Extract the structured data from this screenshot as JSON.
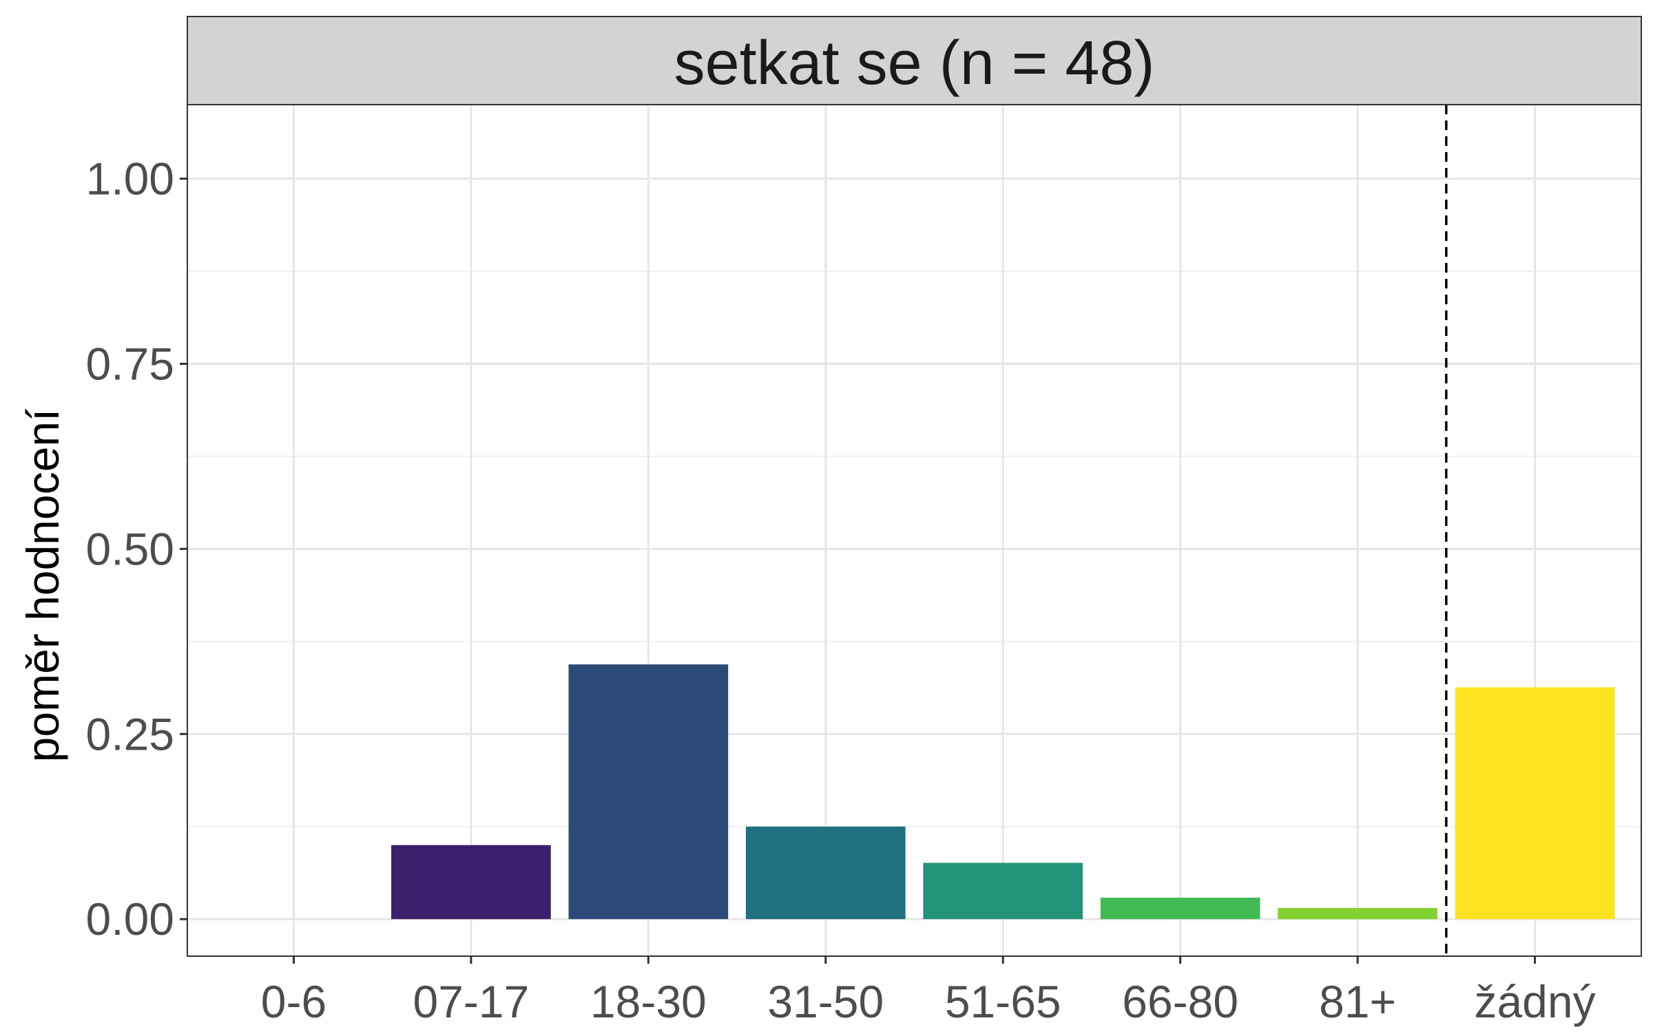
{
  "chart_data": {
    "type": "bar",
    "facet_title": "setkat se (n = 48)",
    "ylabel": "poměr hodnocení",
    "xlabel": "",
    "categories": [
      "0-6",
      "07-17",
      "18-30",
      "31-50",
      "51-65",
      "66-80",
      "81+",
      "žádný"
    ],
    "values": [
      0.0,
      0.1,
      0.344,
      0.125,
      0.076,
      0.029,
      0.015,
      0.313
    ],
    "colors": [
      "#440154",
      "#3B1F6B",
      "#2C4A78",
      "#217080",
      "#229377",
      "#42BA54",
      "#82D22F",
      "#FDE31F"
    ],
    "ylim": [
      -0.05,
      1.1
    ],
    "yticks": [
      0.0,
      0.25,
      0.5,
      0.75,
      1.0
    ],
    "ytick_labels": [
      "0.00",
      "0.25",
      "0.50",
      "0.75",
      "1.00"
    ],
    "separator_after_category": "81+",
    "separator_style": "dashed",
    "grid": true,
    "legend": "none",
    "panel_strip_color": "#D3D3D3"
  }
}
